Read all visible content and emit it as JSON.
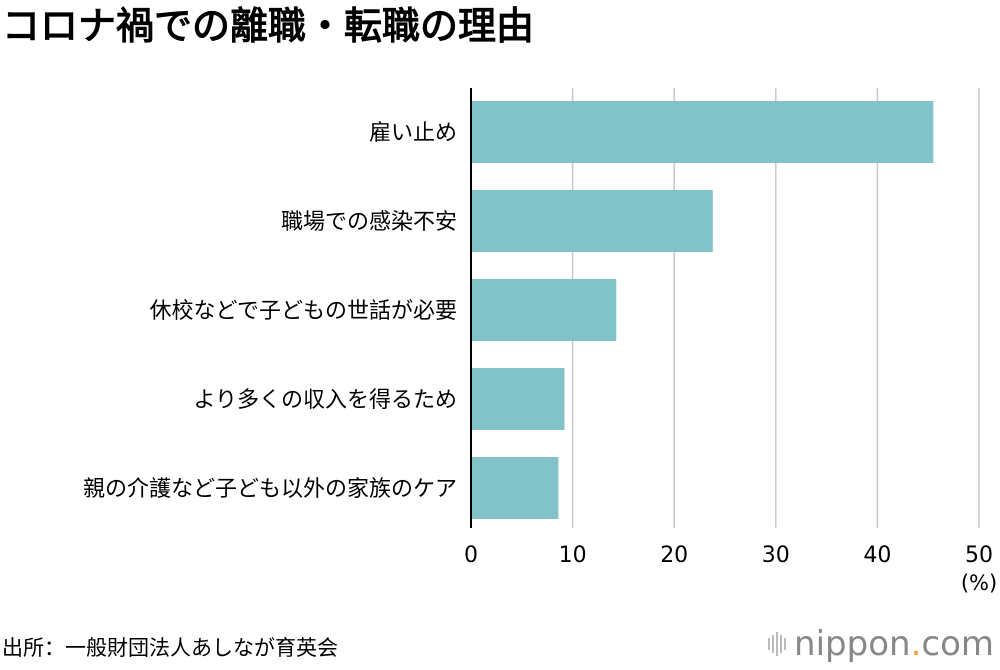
{
  "title": "コロナ禍での離職・転職の理由",
  "source": "出所：一般財団法人あしなが育英会",
  "logo": {
    "name": "nippon",
    "dot": ".",
    "tld": "com"
  },
  "chart_data": {
    "type": "bar",
    "orientation": "horizontal",
    "categories": [
      "雇い止め",
      "職場での感染不安",
      "休校などで子どもの世話が必要",
      "より多くの収入を得るため",
      "親の介護など子ども以外の家族のケア"
    ],
    "values": [
      45.5,
      23.8,
      14.3,
      9.2,
      8.6
    ],
    "xlim": [
      0,
      50
    ],
    "xticks": [
      0,
      10,
      20,
      30,
      40,
      50
    ],
    "xunit": "(%)",
    "grid": true,
    "bar_color": "#82c3c9",
    "grid_color": "#c8c8c8"
  }
}
